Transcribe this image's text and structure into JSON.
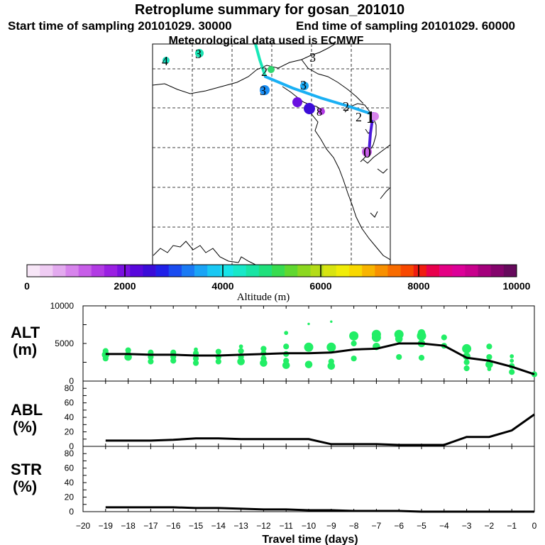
{
  "header": {
    "title": "Retroplume summary for gosan_201010",
    "start_text": "Start time of sampling 20101029. 30000",
    "end_text": "End time of sampling 20101029. 60000",
    "met_text": "Meteorological data used is ECMWF"
  },
  "colorbar": {
    "colors": [
      "#f7e6f7",
      "#efccf3",
      "#e3aaef",
      "#d784ec",
      "#c75ee8",
      "#b23be4",
      "#9a20e2",
      "#7a10e0",
      "#5808dc",
      "#3a0cd8",
      "#2020e8",
      "#1a4cf0",
      "#1a7af4",
      "#1aa4f6",
      "#1ac8f4",
      "#18e4e8",
      "#18e8c8",
      "#18e4a4",
      "#20e07c",
      "#38dc50",
      "#60d830",
      "#8cd820",
      "#b4dc18",
      "#d8e410",
      "#f0ec08",
      "#f8d800",
      "#f8b400",
      "#f89000",
      "#f86c00",
      "#f84800",
      "#f01c10",
      "#e8004c",
      "#e40084",
      "#dc0098",
      "#c8008c",
      "#a4007c",
      "#84046c",
      "#660a5c"
    ],
    "tick_labels": [
      "0",
      "2000",
      "4000",
      "6000",
      "8000",
      "10000"
    ],
    "title": "Altitude (m)"
  },
  "map": {
    "labels": [
      {
        "text": "4",
        "color": "#18e0c0"
      },
      {
        "text": "3",
        "color": "#18d8b8"
      },
      {
        "text": "3",
        "color": "#4a2adc"
      },
      {
        "text": "2",
        "color": "#20c070"
      },
      {
        "text": "3",
        "color": "#1a8ef4"
      },
      {
        "text": "3",
        "color": "#1aa8f0"
      },
      {
        "text": "2",
        "color": "#1a9cf0"
      },
      {
        "text": "8",
        "color": "#3c0cd8"
      },
      {
        "text": "2",
        "color": "#1a8ef4"
      },
      {
        "text": "1",
        "color": "#6a10e0"
      },
      {
        "text": "0",
        "color": "#8a1ae2"
      }
    ]
  },
  "panel_alt": {
    "label_top": "ALT",
    "label_bot": "(m)",
    "y_ticks": [
      "0",
      "5000",
      "10000"
    ]
  },
  "panel_abl": {
    "label_top": "ABL",
    "label_bot": "(%)",
    "y_ticks": [
      "0",
      "20",
      "40",
      "60",
      "80"
    ]
  },
  "panel_str": {
    "label_top": "STR",
    "label_bot": "(%)",
    "y_ticks": [
      "0",
      "20",
      "40",
      "60",
      "80"
    ]
  },
  "x_axis": {
    "title": "Travel time (days)"
  },
  "chart_data": [
    {
      "type": "line",
      "name": "ALT",
      "xlabel": "Travel time (days)",
      "ylabel": "ALT (m)",
      "xlim": [
        -20,
        0
      ],
      "ylim": [
        0,
        10000
      ],
      "x": [
        0,
        -1,
        -2,
        -3,
        -4,
        -5,
        -6,
        -7,
        -8,
        -9,
        -10,
        -11,
        -12,
        -13,
        -14,
        -15,
        -16,
        -17,
        -18,
        -19
      ],
      "values": [
        900,
        1900,
        2700,
        3100,
        4700,
        5000,
        5000,
        4300,
        4200,
        3800,
        3700,
        3700,
        3600,
        3500,
        3400,
        3400,
        3500,
        3500,
        3600,
        3600
      ],
      "scatter_points": [
        {
          "x": 0,
          "y": 900,
          "s": 3
        },
        {
          "x": -1,
          "y": 1200,
          "s": 3
        },
        {
          "x": -1,
          "y": 2000,
          "s": 3
        },
        {
          "x": -1,
          "y": 2700,
          "s": 2
        },
        {
          "x": -1,
          "y": 3300,
          "s": 2
        },
        {
          "x": -2,
          "y": 2200,
          "s": 4
        },
        {
          "x": -2,
          "y": 3200,
          "s": 3
        },
        {
          "x": -2,
          "y": 4600,
          "s": 3
        },
        {
          "x": -2,
          "y": 1600,
          "s": 2
        },
        {
          "x": -3,
          "y": 1700,
          "s": 3
        },
        {
          "x": -3,
          "y": 2500,
          "s": 3
        },
        {
          "x": -3,
          "y": 3300,
          "s": 4
        },
        {
          "x": -3,
          "y": 4300,
          "s": 5
        },
        {
          "x": -4,
          "y": 4700,
          "s": 3
        },
        {
          "x": -4,
          "y": 5800,
          "s": 3
        },
        {
          "x": -5,
          "y": 3100,
          "s": 3
        },
        {
          "x": -5,
          "y": 5000,
          "s": 4
        },
        {
          "x": -5,
          "y": 6000,
          "s": 5
        },
        {
          "x": -5,
          "y": 6400,
          "s": 4
        },
        {
          "x": -6,
          "y": 3200,
          "s": 3
        },
        {
          "x": -6,
          "y": 5600,
          "s": 4
        },
        {
          "x": -6,
          "y": 6200,
          "s": 5
        },
        {
          "x": -7,
          "y": 4600,
          "s": 4
        },
        {
          "x": -7,
          "y": 5800,
          "s": 5
        },
        {
          "x": -7,
          "y": 6200,
          "s": 5
        },
        {
          "x": -8,
          "y": 3000,
          "s": 3
        },
        {
          "x": -8,
          "y": 5000,
          "s": 3
        },
        {
          "x": -8,
          "y": 6000,
          "s": 5
        },
        {
          "x": -9,
          "y": 2000,
          "s": 4
        },
        {
          "x": -9,
          "y": 2600,
          "s": 3
        },
        {
          "x": -9,
          "y": 4500,
          "s": 5
        },
        {
          "x": -9,
          "y": 7900,
          "s": 1
        },
        {
          "x": -10,
          "y": 2200,
          "s": 4
        },
        {
          "x": -10,
          "y": 4500,
          "s": 5
        },
        {
          "x": -10,
          "y": 7600,
          "s": 1
        },
        {
          "x": -11,
          "y": 2100,
          "s": 4
        },
        {
          "x": -11,
          "y": 2700,
          "s": 3
        },
        {
          "x": -11,
          "y": 3600,
          "s": 3
        },
        {
          "x": -11,
          "y": 4600,
          "s": 3
        },
        {
          "x": -11,
          "y": 6400,
          "s": 2
        },
        {
          "x": -12,
          "y": 2400,
          "s": 4
        },
        {
          "x": -12,
          "y": 3000,
          "s": 3
        },
        {
          "x": -12,
          "y": 3700,
          "s": 3
        },
        {
          "x": -12,
          "y": 4300,
          "s": 3
        },
        {
          "x": -13,
          "y": 2600,
          "s": 4
        },
        {
          "x": -13,
          "y": 3200,
          "s": 3
        },
        {
          "x": -13,
          "y": 4000,
          "s": 3
        },
        {
          "x": -13,
          "y": 4600,
          "s": 2
        },
        {
          "x": -14,
          "y": 2600,
          "s": 3
        },
        {
          "x": -14,
          "y": 3200,
          "s": 3
        },
        {
          "x": -14,
          "y": 3900,
          "s": 3
        },
        {
          "x": -15,
          "y": 2400,
          "s": 3
        },
        {
          "x": -15,
          "y": 3000,
          "s": 3
        },
        {
          "x": -15,
          "y": 3700,
          "s": 3
        },
        {
          "x": -15,
          "y": 4200,
          "s": 2
        },
        {
          "x": -16,
          "y": 2700,
          "s": 3
        },
        {
          "x": -16,
          "y": 3200,
          "s": 3
        },
        {
          "x": -16,
          "y": 3800,
          "s": 3
        },
        {
          "x": -17,
          "y": 2600,
          "s": 3
        },
        {
          "x": -17,
          "y": 3200,
          "s": 3
        },
        {
          "x": -17,
          "y": 3800,
          "s": 3
        },
        {
          "x": -18,
          "y": 3200,
          "s": 4
        },
        {
          "x": -18,
          "y": 3600,
          "s": 3
        },
        {
          "x": -18,
          "y": 4100,
          "s": 3
        },
        {
          "x": -19,
          "y": 3000,
          "s": 3
        },
        {
          "x": -19,
          "y": 3500,
          "s": 4
        },
        {
          "x": -19,
          "y": 4000,
          "s": 3
        }
      ]
    },
    {
      "type": "line",
      "name": "ABL",
      "ylabel": "ABL (%)",
      "xlim": [
        -20,
        0
      ],
      "ylim": [
        0,
        90
      ],
      "x": [
        0,
        -1,
        -2,
        -3,
        -4,
        -5,
        -6,
        -7,
        -8,
        -9,
        -10,
        -11,
        -12,
        -13,
        -14,
        -15,
        -16,
        -17,
        -18,
        -19
      ],
      "values": [
        44,
        22,
        13,
        13,
        2,
        2,
        2,
        3,
        3,
        3,
        10,
        10,
        10,
        10,
        11,
        11,
        9,
        8,
        8,
        8
      ]
    },
    {
      "type": "line",
      "name": "STR",
      "ylabel": "STR (%)",
      "xlabel": "Travel time (days)",
      "xlim": [
        -20,
        0
      ],
      "ylim": [
        0,
        90
      ],
      "x": [
        0,
        -1,
        -2,
        -3,
        -4,
        -5,
        -6,
        -7,
        -8,
        -9,
        -10,
        -11,
        -12,
        -13,
        -14,
        -15,
        -16,
        -17,
        -18,
        -19
      ],
      "values": [
        0,
        0,
        0,
        0,
        0,
        0,
        1,
        1,
        1,
        2,
        2,
        3,
        3,
        4,
        5,
        5,
        6,
        6,
        6,
        6
      ]
    }
  ]
}
